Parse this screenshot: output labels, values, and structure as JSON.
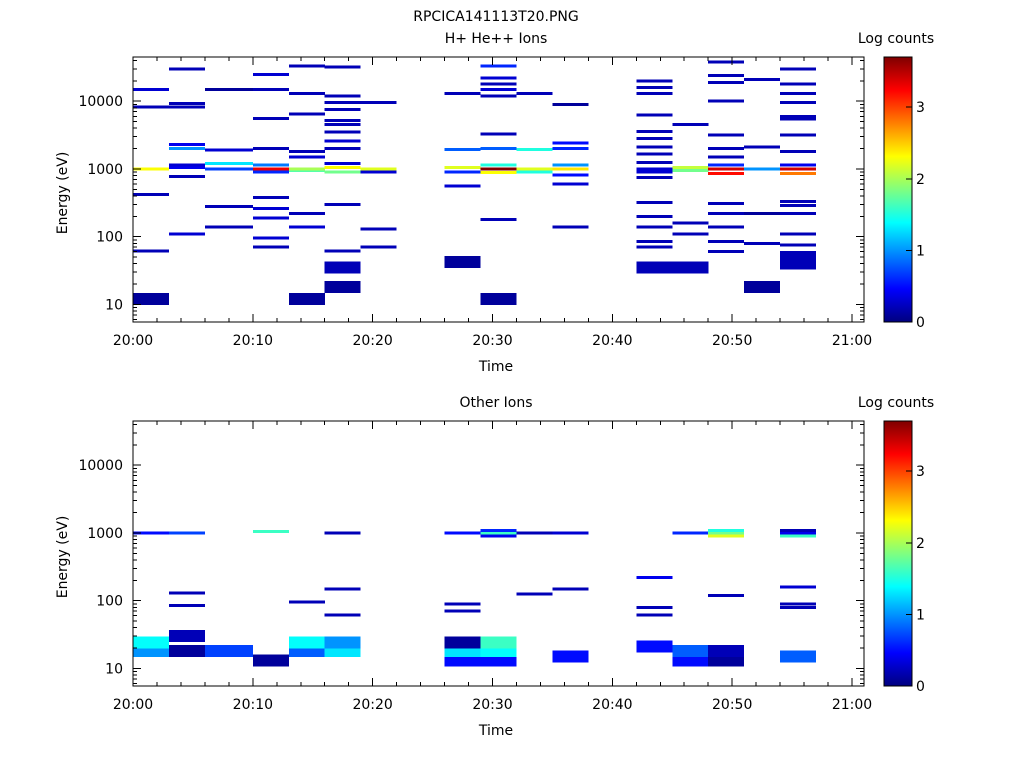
{
  "figure_title": "RPCICA141113T20.PNG",
  "chart_data": [
    {
      "type": "heatmap",
      "title": "H+ He++ Ions",
      "xlabel": "Time",
      "ylabel": "Energy (eV)",
      "colorbar_label": "Log counts",
      "x_ticks": [
        "20:00",
        "20:10",
        "20:20",
        "20:30",
        "20:40",
        "20:50",
        "21:00"
      ],
      "y_ticks": [
        "10",
        "100",
        "1000",
        "10000"
      ],
      "colorbar_ticks": [
        "0",
        "1",
        "2",
        "3"
      ],
      "xlim": [
        "20:00",
        "21:01"
      ],
      "ylim": [
        5.5,
        45000
      ],
      "y_scale": "log",
      "clim": [
        0,
        3.7
      ],
      "columns": [
        {
          "t0": "20:00",
          "t1": "20:03",
          "bins": [
            [
              12,
              0.1
            ],
            [
              62,
              0.2
            ],
            [
              420,
              0.2
            ],
            [
              1000,
              2.3
            ],
            [
              8200,
              0.2
            ],
            [
              15000,
              0.3
            ]
          ]
        },
        {
          "t0": "20:03",
          "t1": "20:06",
          "bins": [
            [
              110,
              0.3
            ],
            [
              780,
              0.2
            ],
            [
              1050,
              0.4
            ],
            [
              1150,
              0.3
            ],
            [
              2000,
              1.0
            ],
            [
              2300,
              0.4
            ],
            [
              8200,
              0.2
            ],
            [
              9200,
              0.2
            ],
            [
              30000,
              0.2
            ]
          ]
        },
        {
          "t0": "20:06",
          "t1": "20:10",
          "bins": [
            [
              140,
              0.2
            ],
            [
              280,
              0.2
            ],
            [
              1000,
              0.7
            ],
            [
              1200,
              1.3
            ],
            [
              1900,
              0.3
            ],
            [
              15000,
              0.1
            ]
          ]
        },
        {
          "t0": "20:10",
          "t1": "20:13",
          "bins": [
            [
              70,
              0.2
            ],
            [
              95,
              0.3
            ],
            [
              190,
              0.3
            ],
            [
              260,
              0.3
            ],
            [
              380,
              0.2
            ],
            [
              900,
              0.6
            ],
            [
              1000,
              3.3
            ],
            [
              1150,
              0.9
            ],
            [
              2000,
              0.2
            ],
            [
              5600,
              0.2
            ],
            [
              15000,
              0.2
            ],
            [
              25000,
              0.3
            ]
          ]
        },
        {
          "t0": "20:13",
          "t1": "20:16",
          "bins": [
            [
              12,
              0.1
            ],
            [
              140,
              0.3
            ],
            [
              220,
              0.2
            ],
            [
              950,
              1.7
            ],
            [
              1000,
              2.0
            ],
            [
              1500,
              0.3
            ],
            [
              1800,
              0.2
            ],
            [
              6500,
              0.2
            ],
            [
              13000,
              0.2
            ],
            [
              33000,
              0.2
            ]
          ]
        },
        {
          "t0": "20:16",
          "t1": "20:19",
          "bins": [
            [
              18,
              0.1
            ],
            [
              35,
              0.2
            ],
            [
              62,
              0.2
            ],
            [
              300,
              0.2
            ],
            [
              900,
              1.8
            ],
            [
              1050,
              2.3
            ],
            [
              1200,
              0.3
            ],
            [
              2000,
              0.2
            ],
            [
              2600,
              0.3
            ],
            [
              3500,
              0.2
            ],
            [
              4500,
              0.2
            ],
            [
              5200,
              0.2
            ],
            [
              7500,
              0.2
            ],
            [
              9500,
              0.2
            ],
            [
              12000,
              0.2
            ],
            [
              32000,
              0.2
            ]
          ]
        },
        {
          "t0": "20:19",
          "t1": "20:22",
          "bins": [
            [
              70,
              0.2
            ],
            [
              130,
              0.2
            ],
            [
              900,
              0.3
            ],
            [
              1000,
              2.2
            ],
            [
              9500,
              0.2
            ]
          ]
        },
        {
          "t0": "20:26",
          "t1": "20:29",
          "bins": [
            [
              42,
              0.1
            ],
            [
              560,
              0.3
            ],
            [
              900,
              0.6
            ],
            [
              1050,
              2.2
            ],
            [
              1950,
              0.8
            ],
            [
              13000,
              0.2
            ]
          ]
        },
        {
          "t0": "20:29",
          "t1": "20:32",
          "bins": [
            [
              12,
              0.1
            ],
            [
              180,
              0.2
            ],
            [
              880,
              2.3
            ],
            [
              1000,
              3.7
            ],
            [
              1150,
              1.5
            ],
            [
              2000,
              0.8
            ],
            [
              3300,
              0.2
            ],
            [
              12000,
              0.2
            ],
            [
              15000,
              0.3
            ],
            [
              18000,
              0.2
            ],
            [
              22000,
              0.3
            ],
            [
              33000,
              0.6
            ]
          ]
        },
        {
          "t0": "20:32",
          "t1": "20:35",
          "bins": [
            [
              900,
              1.5
            ],
            [
              1000,
              2.2
            ],
            [
              1950,
              1.5
            ],
            [
              13000,
              0.2
            ]
          ]
        },
        {
          "t0": "20:35",
          "t1": "20:38",
          "bins": [
            [
              140,
              0.2
            ],
            [
              600,
              0.3
            ],
            [
              820,
              0.5
            ],
            [
              1000,
              2.4
            ],
            [
              1150,
              1.0
            ],
            [
              2000,
              0.6
            ],
            [
              2400,
              0.5
            ],
            [
              9000,
              0.1
            ]
          ]
        },
        {
          "t0": "20:42",
          "t1": "20:45",
          "bins": [
            [
              35,
              0.2
            ],
            [
              70,
              0.2
            ],
            [
              85,
              0.2
            ],
            [
              140,
              0.2
            ],
            [
              200,
              0.2
            ],
            [
              320,
              0.2
            ],
            [
              750,
              0.2
            ],
            [
              900,
              0.3
            ],
            [
              1000,
              0.3
            ],
            [
              1250,
              0.2
            ],
            [
              1650,
              0.2
            ],
            [
              2100,
              0.2
            ],
            [
              2800,
              0.2
            ],
            [
              3600,
              0.2
            ],
            [
              6300,
              0.2
            ],
            [
              13000,
              0.2
            ],
            [
              16000,
              0.2
            ],
            [
              20000,
              0.2
            ]
          ]
        },
        {
          "t0": "20:45",
          "t1": "20:48",
          "bins": [
            [
              35,
              0.2
            ],
            [
              110,
              0.2
            ],
            [
              160,
              0.2
            ],
            [
              950,
              1.8
            ],
            [
              1050,
              2.1
            ],
            [
              4500,
              0.2
            ]
          ]
        },
        {
          "t0": "20:48",
          "t1": "20:51",
          "bins": [
            [
              60,
              0.2
            ],
            [
              85,
              0.2
            ],
            [
              140,
              0.2
            ],
            [
              220,
              0.2
            ],
            [
              310,
              0.2
            ],
            [
              850,
              3.2
            ],
            [
              1000,
              3.4
            ],
            [
              1150,
              0.6
            ],
            [
              1500,
              0.2
            ],
            [
              2000,
              0.2
            ],
            [
              3200,
              0.2
            ],
            [
              10000,
              0.2
            ],
            [
              19000,
              0.2
            ],
            [
              24000,
              0.2
            ],
            [
              38000,
              0.2
            ]
          ]
        },
        {
          "t0": "20:51",
          "t1": "20:54",
          "bins": [
            [
              18,
              0.1
            ],
            [
              80,
              0.2
            ],
            [
              220,
              0.1
            ],
            [
              1000,
              1.0
            ],
            [
              2100,
              0.2
            ],
            [
              21000,
              0.2
            ]
          ]
        },
        {
          "t0": "20:54",
          "t1": "20:57",
          "bins": [
            [
              40,
              0.2
            ],
            [
              50,
              0.2
            ],
            [
              75,
              0.2
            ],
            [
              110,
              0.2
            ],
            [
              220,
              0.2
            ],
            [
              290,
              0.2
            ],
            [
              330,
              0.2
            ],
            [
              850,
              2.8
            ],
            [
              1000,
              3.4
            ],
            [
              1150,
              0.4
            ],
            [
              1800,
              0.2
            ],
            [
              3200,
              0.2
            ],
            [
              5500,
              0.2
            ],
            [
              6000,
              0.2
            ],
            [
              9500,
              0.2
            ],
            [
              13000,
              0.2
            ],
            [
              18000,
              0.2
            ],
            [
              30000,
              0.2
            ]
          ]
        }
      ]
    },
    {
      "type": "heatmap",
      "title": "Other Ions",
      "xlabel": "Time",
      "ylabel": "Energy (eV)",
      "colorbar_label": "Log counts",
      "x_ticks": [
        "20:00",
        "20:10",
        "20:20",
        "20:30",
        "20:40",
        "20:50",
        "21:00"
      ],
      "y_ticks": [
        "10",
        "100",
        "1000",
        "10000"
      ],
      "colorbar_ticks": [
        "0",
        "1",
        "2",
        "3"
      ],
      "xlim": [
        "20:00",
        "21:01"
      ],
      "ylim": [
        5.5,
        45000
      ],
      "y_scale": "log",
      "clim": [
        0,
        3.7
      ],
      "columns": [
        {
          "t0": "20:00",
          "t1": "20:03",
          "bins": [
            [
              18,
              1.0
            ],
            [
              24,
              1.4
            ],
            [
              1000,
              0.5
            ]
          ]
        },
        {
          "t0": "20:03",
          "t1": "20:06",
          "bins": [
            [
              18,
              0.1
            ],
            [
              30,
              0.2
            ],
            [
              85,
              0.2
            ],
            [
              130,
              0.2
            ],
            [
              1000,
              0.7
            ]
          ]
        },
        {
          "t0": "20:06",
          "t1": "20:10",
          "bins": [
            [
              18,
              0.7
            ]
          ]
        },
        {
          "t0": "20:10",
          "t1": "20:13",
          "bins": [
            [
              13,
              0.1
            ],
            [
              1050,
              1.6
            ]
          ]
        },
        {
          "t0": "20:13",
          "t1": "20:16",
          "bins": [
            [
              18,
              0.8
            ],
            [
              24,
              1.4
            ],
            [
              95,
              0.2
            ]
          ]
        },
        {
          "t0": "20:16",
          "t1": "20:19",
          "bins": [
            [
              18,
              1.3
            ],
            [
              24,
              1.0
            ],
            [
              62,
              0.2
            ],
            [
              150,
              0.2
            ],
            [
              1000,
              0.2
            ]
          ]
        },
        {
          "t0": "20:26",
          "t1": "20:29",
          "bins": [
            [
              13,
              0.5
            ],
            [
              18,
              1.3
            ],
            [
              24,
              0.1
            ],
            [
              70,
              0.2
            ],
            [
              90,
              0.2
            ],
            [
              1000,
              0.5
            ]
          ]
        },
        {
          "t0": "20:29",
          "t1": "20:32",
          "bins": [
            [
              13,
              0.5
            ],
            [
              18,
              1.4
            ],
            [
              24,
              1.6
            ],
            [
              900,
              0.4
            ],
            [
              1000,
              1.6
            ],
            [
              1080,
              0.6
            ]
          ]
        },
        {
          "t0": "20:32",
          "t1": "20:35",
          "bins": [
            [
              125,
              0.2
            ],
            [
              1000,
              0.2
            ]
          ]
        },
        {
          "t0": "20:35",
          "t1": "20:38",
          "bins": [
            [
              15,
              0.5
            ],
            [
              150,
              0.2
            ],
            [
              1000,
              0.3
            ]
          ]
        },
        {
          "t0": "20:42",
          "t1": "20:45",
          "bins": [
            [
              21,
              0.5
            ],
            [
              62,
              0.2
            ],
            [
              80,
              0.2
            ],
            [
              220,
              0.4
            ]
          ]
        },
        {
          "t0": "20:45",
          "t1": "20:48",
          "bins": [
            [
              13,
              0.5
            ],
            [
              18,
              0.8
            ],
            [
              1000,
              0.6
            ]
          ]
        },
        {
          "t0": "20:48",
          "t1": "20:51",
          "bins": [
            [
              13,
              0.1
            ],
            [
              18,
              0.2
            ],
            [
              120,
              0.2
            ],
            [
              900,
              2.2
            ],
            [
              1000,
              1.8
            ],
            [
              1080,
              1.5
            ]
          ]
        },
        {
          "t0": "20:54",
          "t1": "20:57",
          "bins": [
            [
              15,
              0.8
            ],
            [
              80,
              0.2
            ],
            [
              90,
              0.2
            ],
            [
              160,
              0.3
            ],
            [
              900,
              1.6
            ],
            [
              1000,
              0.4
            ],
            [
              1080,
              0.2
            ]
          ]
        }
      ]
    }
  ]
}
